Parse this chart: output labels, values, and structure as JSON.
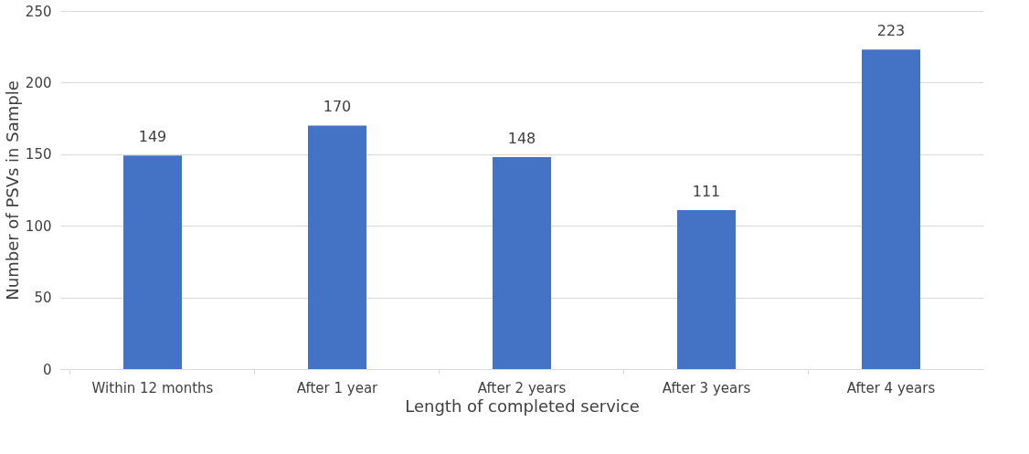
{
  "chart_data": {
    "type": "bar",
    "xlabel": "Length of completed service",
    "ylabel": "Number of PSVs in Sample",
    "categories": [
      "Within 12 months",
      "After 1 year",
      "After 2 years",
      "After 3 years",
      "After 4 years"
    ],
    "values": [
      149,
      170,
      148,
      111,
      223
    ],
    "color": "#4472c4",
    "ylim": [
      0,
      250
    ],
    "yticks": [
      0,
      50,
      100,
      150,
      200,
      250
    ],
    "grid": "y",
    "data_labels": true
  }
}
